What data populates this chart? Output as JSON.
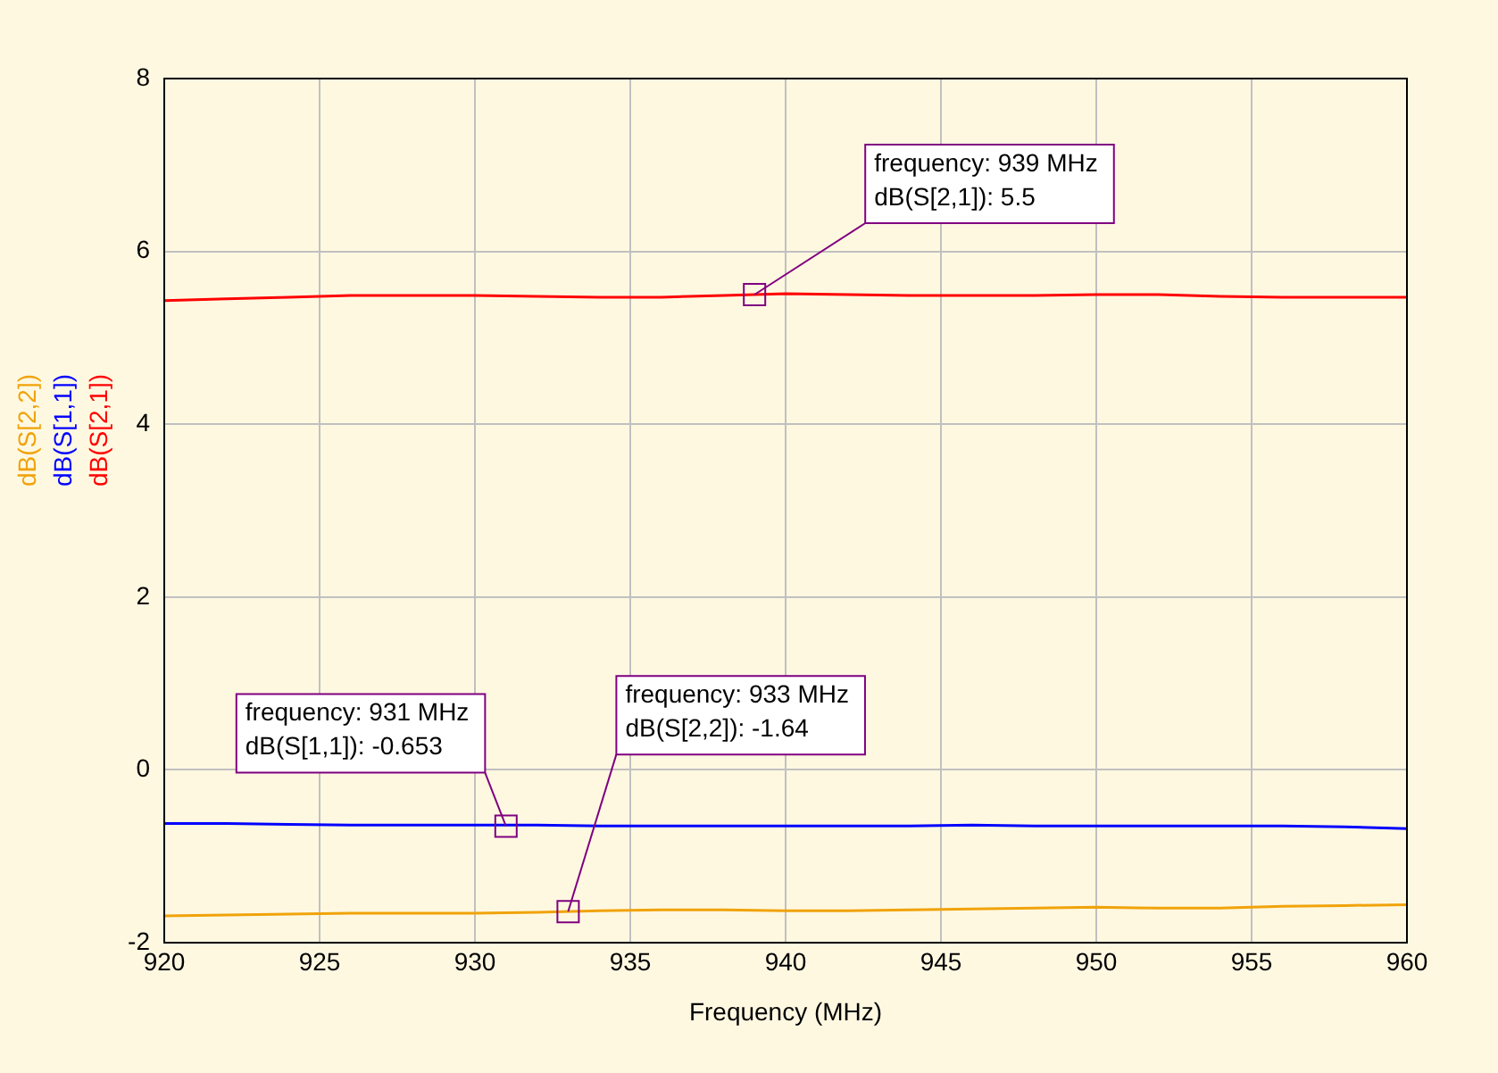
{
  "chart_data": {
    "type": "line",
    "xlabel": "Frequency (MHz)",
    "x": [
      920,
      922,
      924,
      926,
      928,
      930,
      932,
      934,
      936,
      938,
      940,
      942,
      944,
      946,
      948,
      950,
      952,
      954,
      956,
      958,
      960
    ],
    "series": [
      {
        "name": "dB(S[2,2])",
        "color": "#f0a30a",
        "values": [
          -1.69,
          -1.68,
          -1.67,
          -1.66,
          -1.66,
          -1.66,
          -1.65,
          -1.63,
          -1.62,
          -1.62,
          -1.63,
          -1.63,
          -1.62,
          -1.61,
          -1.6,
          -1.59,
          -1.6,
          -1.6,
          -1.58,
          -1.57,
          -1.56
        ]
      },
      {
        "name": "dB(S[1,1])",
        "color": "#0000ff",
        "values": [
          -0.62,
          -0.62,
          -0.63,
          -0.64,
          -0.64,
          -0.64,
          -0.64,
          -0.65,
          -0.65,
          -0.65,
          -0.65,
          -0.65,
          -0.65,
          -0.64,
          -0.65,
          -0.65,
          -0.65,
          -0.65,
          -0.65,
          -0.66,
          -0.68
        ]
      },
      {
        "name": "dB(S[2,1])",
        "color": "#ff0000",
        "values": [
          5.43,
          5.45,
          5.47,
          5.49,
          5.49,
          5.49,
          5.48,
          5.47,
          5.47,
          5.49,
          5.51,
          5.5,
          5.49,
          5.49,
          5.49,
          5.5,
          5.5,
          5.48,
          5.47,
          5.47,
          5.47
        ]
      }
    ],
    "xlim": [
      920,
      960
    ],
    "xticks": [
      920,
      925,
      930,
      935,
      940,
      945,
      950,
      955,
      960
    ],
    "ylim": [
      -2,
      8
    ],
    "yticks": [
      -2,
      0,
      2,
      4,
      6,
      8
    ],
    "grid": true,
    "legend": "left",
    "marker": "none",
    "line_style": "solid",
    "annotations": [
      {
        "text": "frequency: 939 MHz\ndB(S[2,1]): 5.5",
        "x": 939,
        "y": 5.5
      },
      {
        "text": "frequency: 931 MHz\ndB(S[1,1]): -0.653",
        "x": 931,
        "y": -0.653
      },
      {
        "text": "frequency: 933 MHz\ndB(S[2,2]): -1.64",
        "x": 933,
        "y": -1.64
      }
    ]
  }
}
